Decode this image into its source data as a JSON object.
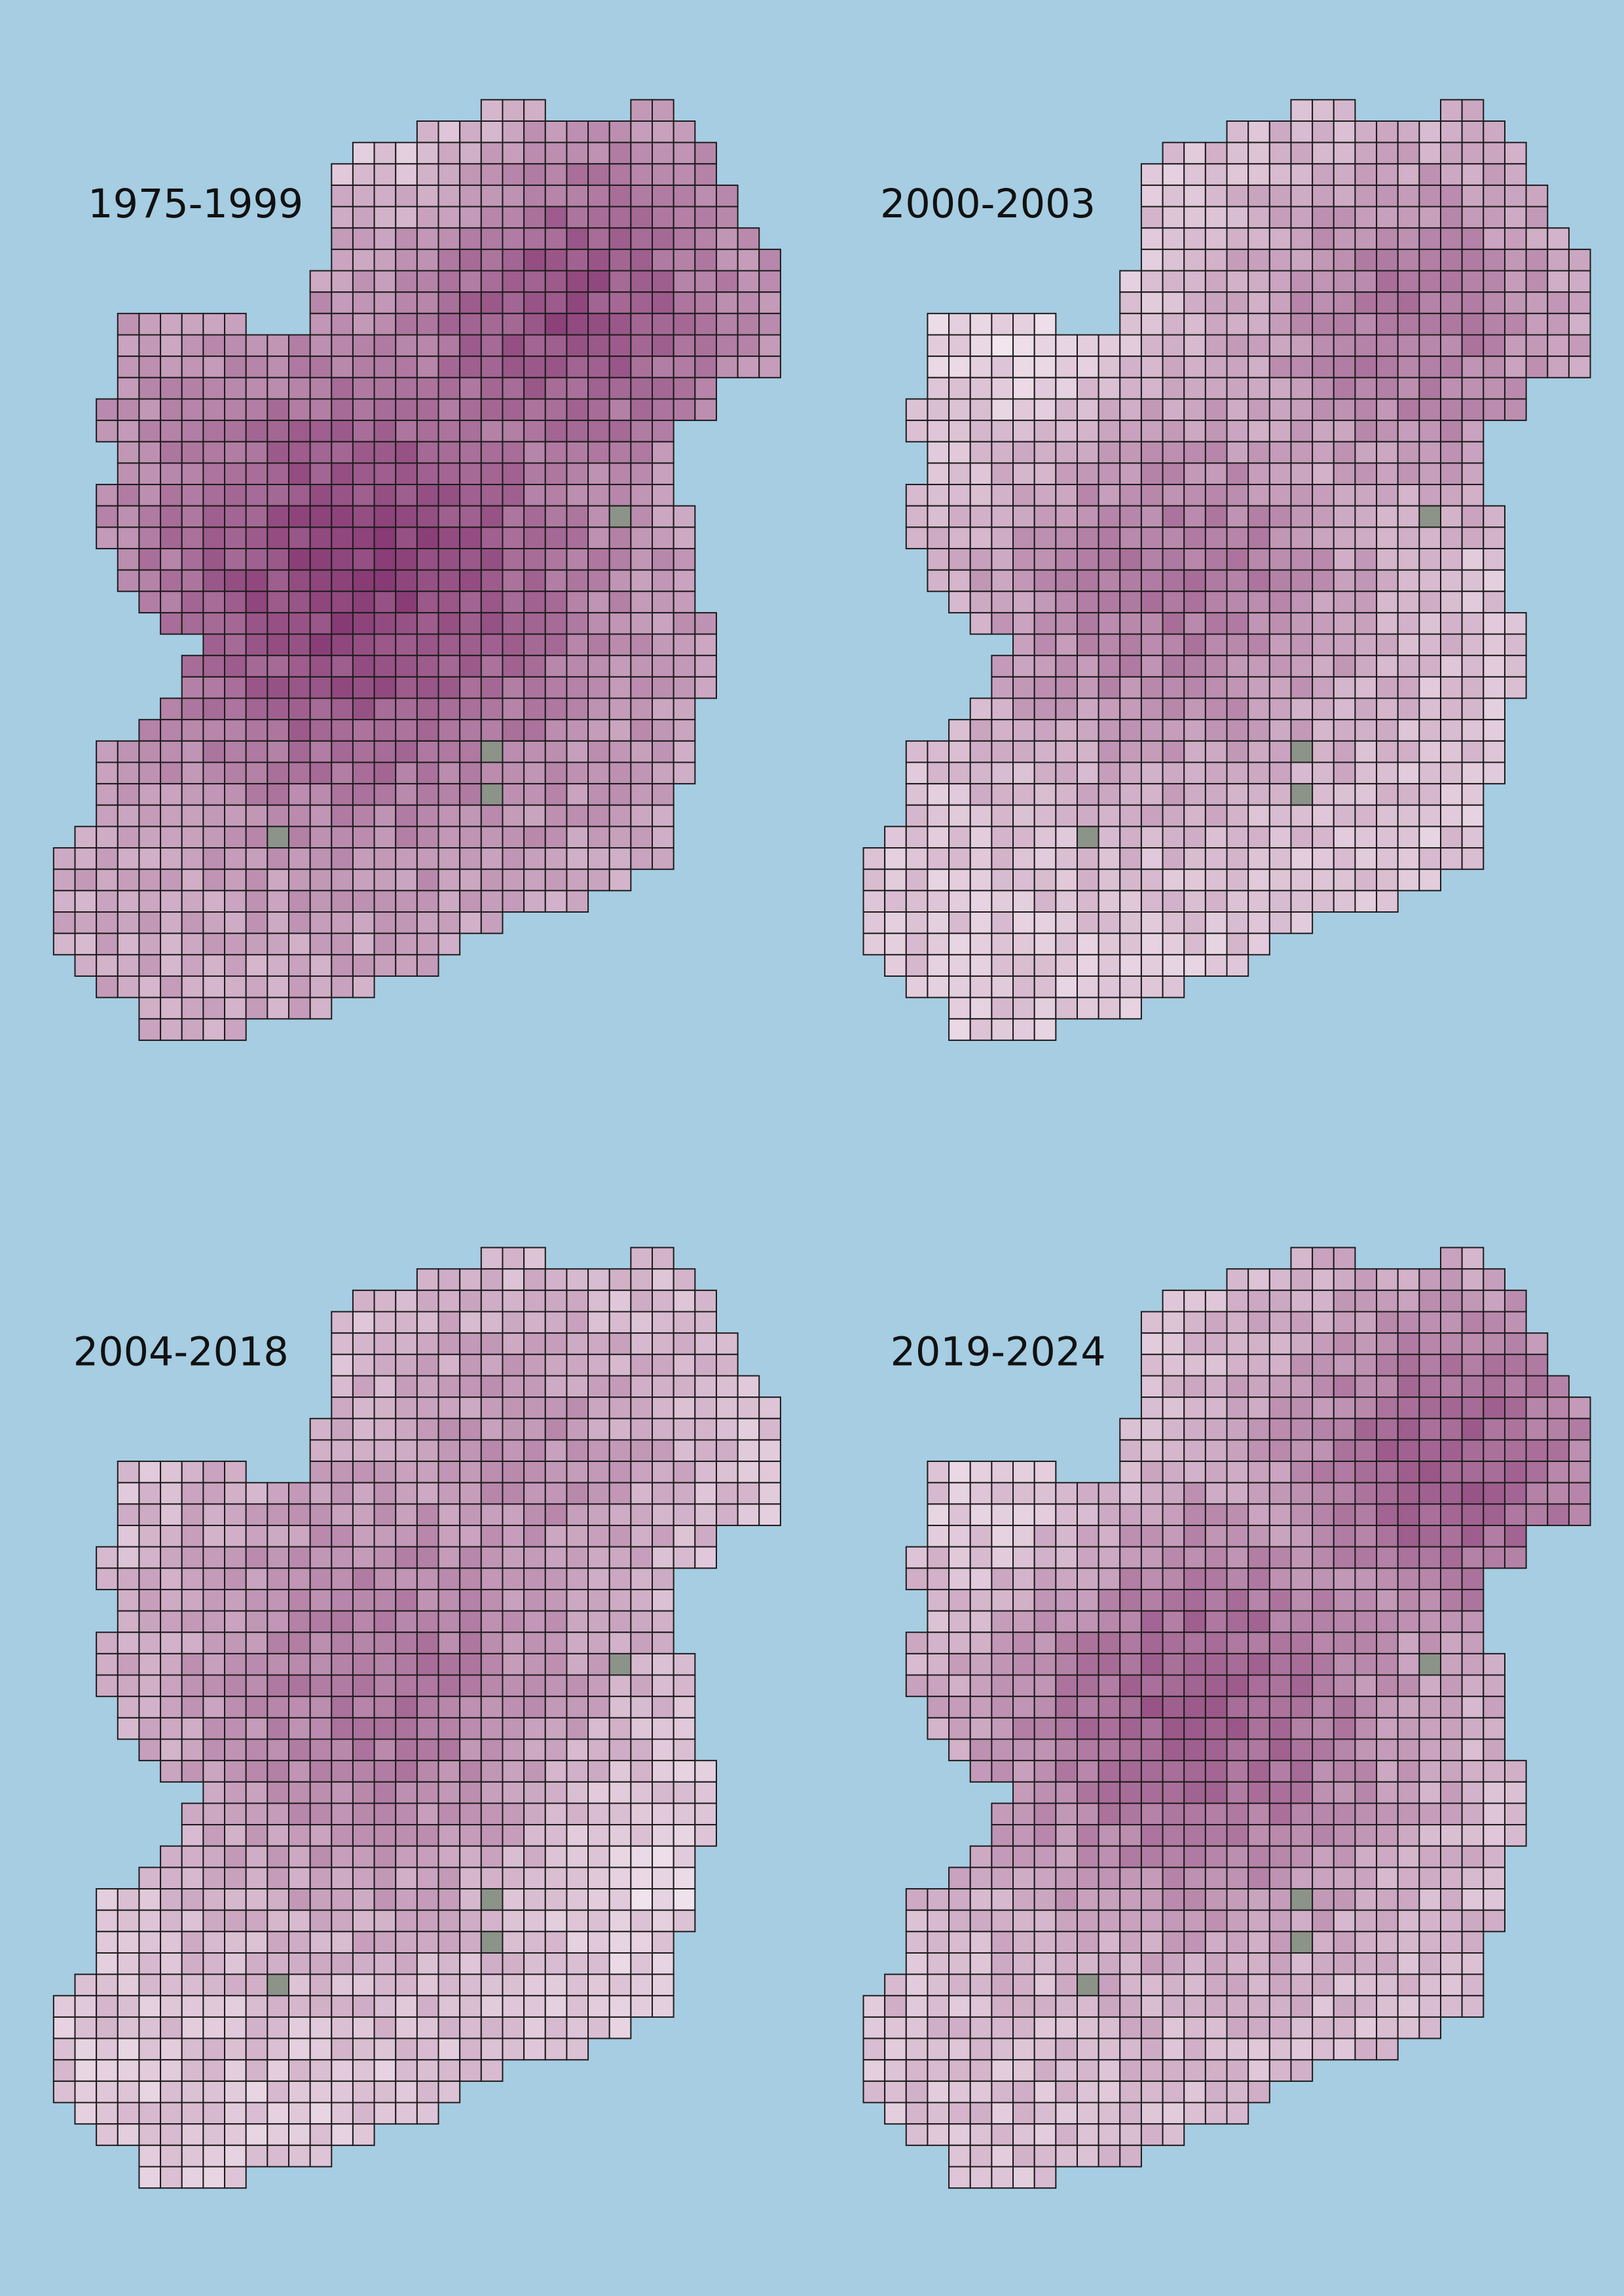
{
  "panels": [
    {
      "title": "1975-1999"
    },
    {
      "title": "2000-2003"
    },
    {
      "title": "2004-2018"
    },
    {
      "title": "2019-2024"
    }
  ]
}
